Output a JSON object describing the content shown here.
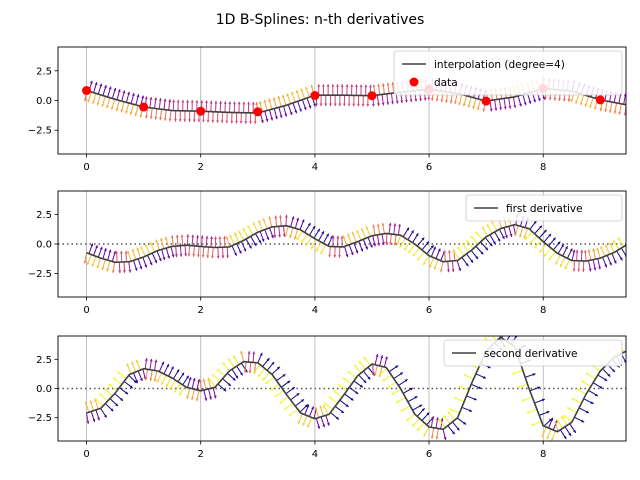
{
  "figure": {
    "suptitle": "1D B-Splines: n-th derivatives"
  },
  "chart_data": [
    {
      "type": "line",
      "xlim": [
        -0.5,
        9.45
      ],
      "ylim": [
        -4.5,
        4.5
      ],
      "xticks": [
        0,
        2,
        4,
        6,
        8
      ],
      "xtick_labels": [
        "0",
        "2",
        "4",
        "6",
        "8"
      ],
      "yticks": [
        2.5,
        0.0,
        -2.5
      ],
      "ytick_labels": [
        "2.5",
        "0.0",
        "−2.5"
      ],
      "grid": "x",
      "legend_position": "top-right",
      "legend": [
        "interpolation (degree=4)",
        "data"
      ],
      "zero_line": false,
      "series": [
        {
          "name": "interpolation (degree=4)",
          "kind": "line",
          "color": "#404040",
          "x": [
            0,
            0.5,
            1,
            1.5,
            2,
            2.5,
            3,
            3.5,
            4,
            4.5,
            5,
            5.5,
            6,
            6.5,
            7,
            7.5,
            8,
            8.5,
            9,
            9.45
          ],
          "y": [
            0.84,
            0.1,
            -0.55,
            -0.85,
            -0.9,
            -1.0,
            -1.05,
            -0.4,
            0.45,
            0.45,
            0.4,
            0.7,
            0.95,
            0.6,
            -0.05,
            0.3,
            1.0,
            0.8,
            0.05,
            -0.35
          ]
        },
        {
          "name": "data",
          "kind": "scatter",
          "color": "#ff0000",
          "x": [
            0,
            1,
            2,
            3,
            4,
            5,
            6,
            7,
            8,
            9
          ],
          "y": [
            0.84,
            -0.55,
            -0.9,
            -0.95,
            0.42,
            0.4,
            0.95,
            -0.05,
            1.0,
            0.05
          ]
        }
      ]
    },
    {
      "type": "line",
      "xlim": [
        -0.5,
        9.45
      ],
      "ylim": [
        -4.5,
        4.5
      ],
      "xticks": [
        0,
        2,
        4,
        6,
        8
      ],
      "xtick_labels": [
        "0",
        "2",
        "4",
        "6",
        "8"
      ],
      "yticks": [
        2.5,
        0.0,
        -2.5
      ],
      "ytick_labels": [
        "2.5",
        "0.0",
        "−2.5"
      ],
      "grid": "x",
      "legend_position": "top-right",
      "legend": [
        "first derivative"
      ],
      "zero_line": true,
      "series": [
        {
          "name": "first derivative",
          "kind": "line",
          "color": "#404040",
          "x": [
            0,
            0.25,
            0.5,
            0.75,
            1,
            1.25,
            1.5,
            1.75,
            2,
            2.25,
            2.5,
            2.75,
            3,
            3.25,
            3.5,
            3.75,
            4,
            4.25,
            4.5,
            4.75,
            5,
            5.25,
            5.5,
            5.75,
            6,
            6.25,
            6.5,
            6.75,
            7,
            7.25,
            7.5,
            7.75,
            8,
            8.25,
            8.5,
            8.75,
            9,
            9.25,
            9.45
          ],
          "y": [
            -0.75,
            -1.2,
            -1.55,
            -1.5,
            -1.1,
            -0.55,
            -0.2,
            -0.1,
            -0.2,
            -0.3,
            -0.25,
            0.3,
            1.0,
            1.45,
            1.55,
            1.2,
            0.45,
            -0.2,
            -0.25,
            0.2,
            0.7,
            0.9,
            0.75,
            0.0,
            -1.0,
            -1.5,
            -1.4,
            -0.5,
            0.6,
            1.3,
            1.65,
            1.3,
            0.2,
            -0.8,
            -1.4,
            -1.45,
            -1.2,
            -0.7,
            -0.1
          ]
        }
      ]
    },
    {
      "type": "line",
      "xlim": [
        -0.5,
        9.45
      ],
      "ylim": [
        -4.5,
        4.5
      ],
      "xticks": [
        0,
        2,
        4,
        6,
        8
      ],
      "xtick_labels": [
        "0",
        "2",
        "4",
        "6",
        "8"
      ],
      "yticks": [
        2.5,
        0.0,
        -2.5
      ],
      "ytick_labels": [
        "2.5",
        "0.0",
        "−2.5"
      ],
      "grid": "x",
      "legend_position": "top-right",
      "legend": [
        "second derivative"
      ],
      "zero_line": true,
      "series": [
        {
          "name": "second derivative",
          "kind": "line",
          "color": "#404040",
          "x": [
            0,
            0.25,
            0.5,
            0.75,
            1,
            1.25,
            1.5,
            1.75,
            2,
            2.25,
            2.5,
            2.75,
            3,
            3.25,
            3.5,
            3.75,
            4,
            4.25,
            4.5,
            4.75,
            5,
            5.25,
            5.5,
            5.75,
            6,
            6.25,
            6.5,
            6.75,
            7,
            7.25,
            7.5,
            7.75,
            8,
            8.25,
            8.5,
            8.75,
            9,
            9.25,
            9.45
          ],
          "y": [
            -2.1,
            -1.7,
            -0.4,
            1.2,
            1.7,
            1.5,
            0.9,
            0.1,
            -0.2,
            0.1,
            1.5,
            2.3,
            2.2,
            1.2,
            -0.5,
            -2.1,
            -2.6,
            -2.2,
            -0.6,
            1.1,
            2.1,
            1.8,
            0.0,
            -2.2,
            -3.3,
            -3.5,
            -2.5,
            0.5,
            3.2,
            4.4,
            3.6,
            0.0,
            -3.2,
            -3.7,
            -2.9,
            -0.5,
            1.5,
            2.7,
            3.2
          ]
        }
      ]
    }
  ]
}
